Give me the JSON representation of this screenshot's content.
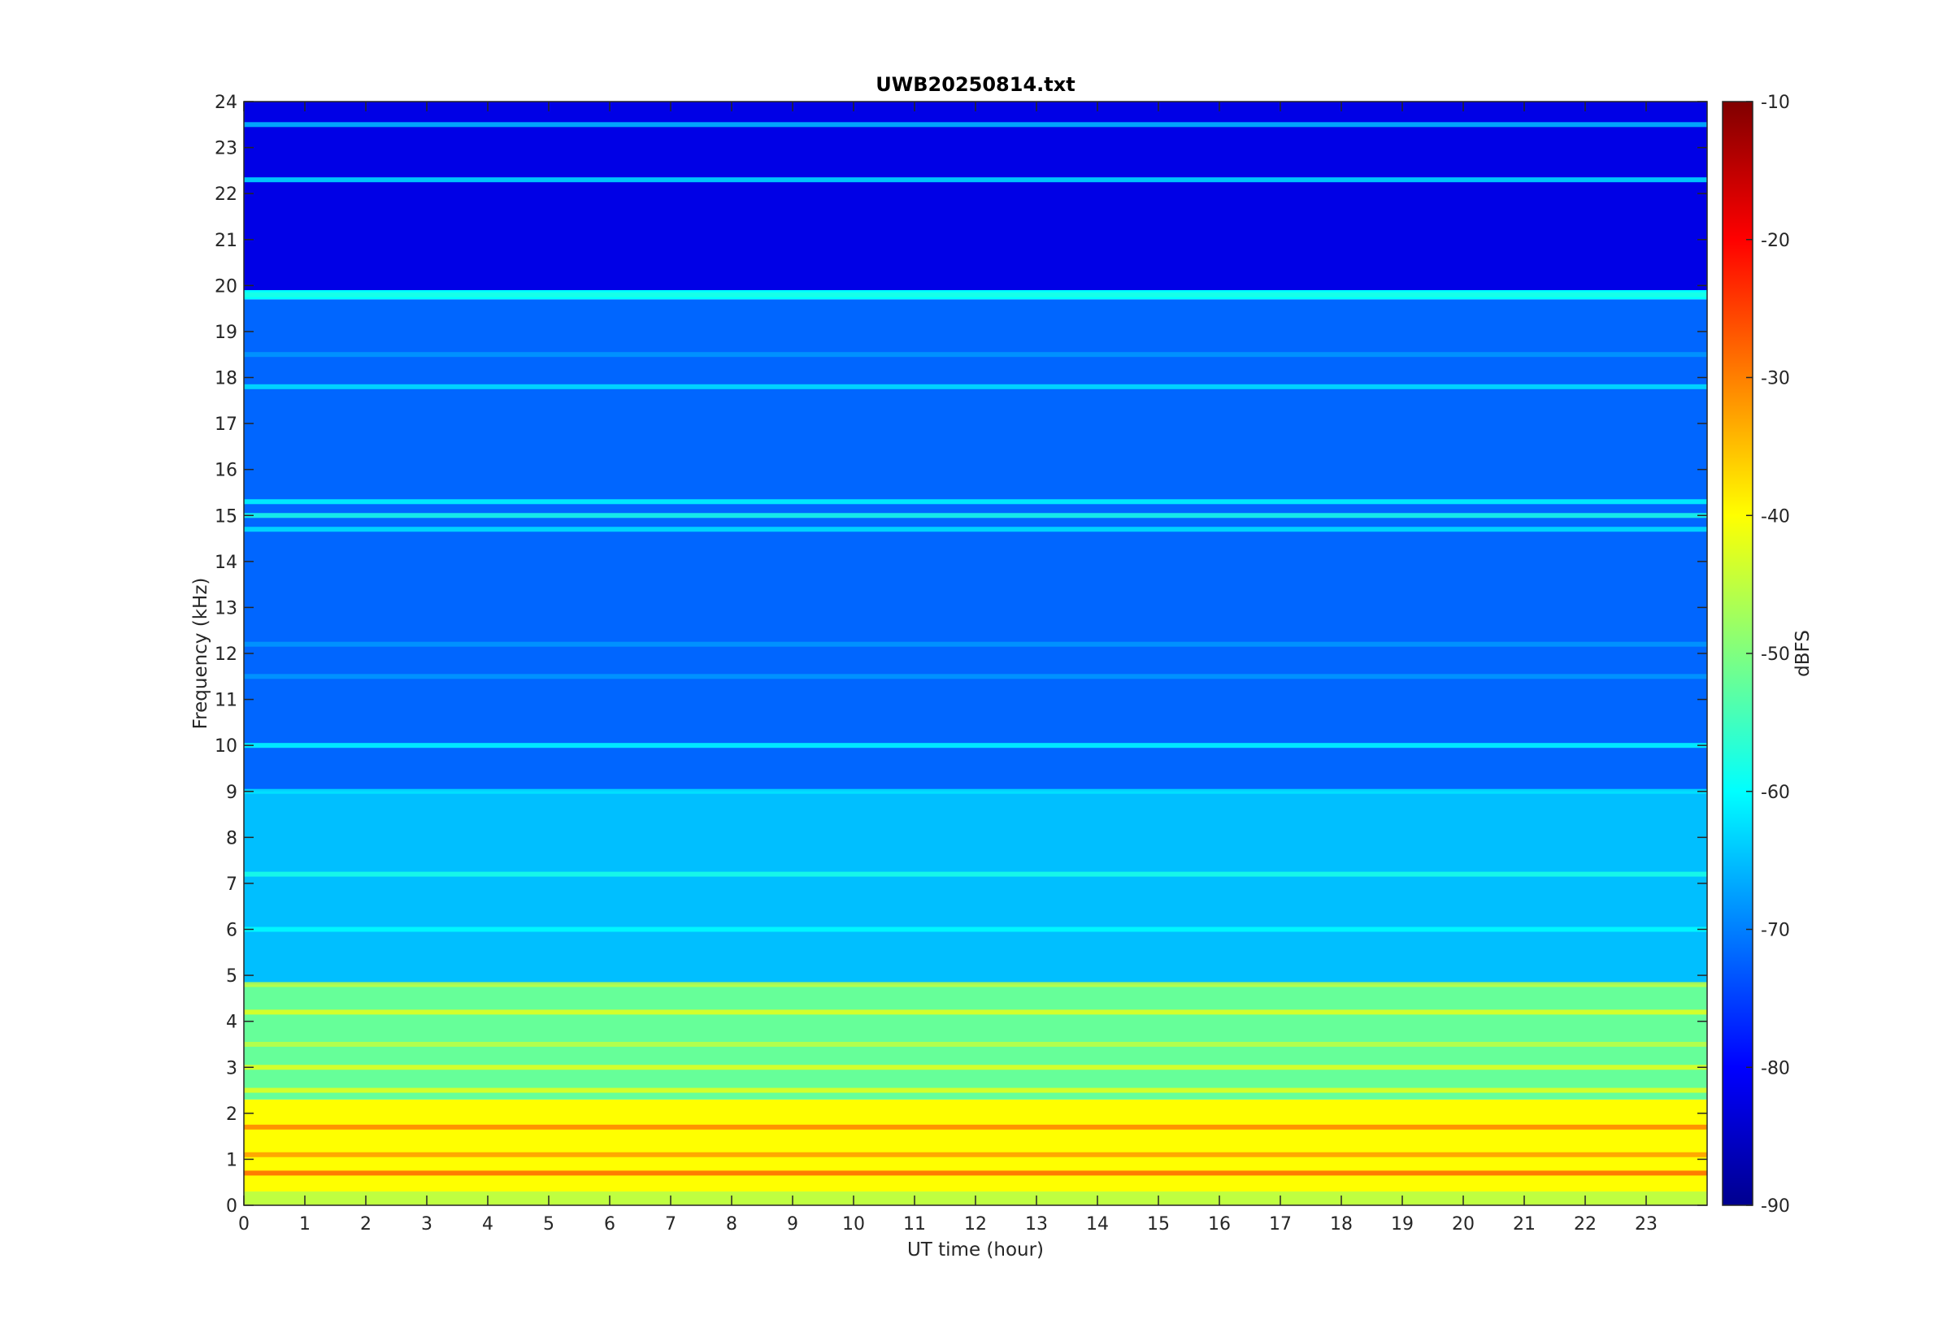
{
  "chart_data": {
    "type": "heatmap",
    "title": "UWB20250814.txt",
    "xlabel": "UT time (hour)",
    "ylabel": "Frequency (kHz)",
    "xlim": [
      0,
      24
    ],
    "ylim": [
      0,
      24
    ],
    "x_ticks": [
      "0",
      "1",
      "2",
      "3",
      "4",
      "5",
      "6",
      "7",
      "8",
      "9",
      "10",
      "11",
      "12",
      "13",
      "14",
      "15",
      "16",
      "17",
      "18",
      "19",
      "20",
      "21",
      "22",
      "23"
    ],
    "y_ticks": [
      "0",
      "1",
      "2",
      "3",
      "4",
      "5",
      "6",
      "7",
      "8",
      "9",
      "10",
      "11",
      "12",
      "13",
      "14",
      "15",
      "16",
      "17",
      "18",
      "19",
      "20",
      "21",
      "22",
      "23",
      "24"
    ],
    "colorbar": {
      "label": "dBFS",
      "range": [
        -90,
        -10
      ],
      "ticks": [
        "-10",
        "-20",
        "-30",
        "-40",
        "-50",
        "-60",
        "-70",
        "-80",
        "-90"
      ],
      "colormap": "jet"
    },
    "z_levels_dbfs": [
      {
        "band_khz": [
          0,
          0.3
        ],
        "value": -45
      },
      {
        "band_khz": [
          0.3,
          2.3
        ],
        "value": -40
      },
      {
        "band_khz": [
          2.3,
          4.8
        ],
        "value": -52
      },
      {
        "band_khz": [
          4.8,
          9
        ],
        "value": -65
      },
      {
        "band_khz": [
          9,
          19.7
        ],
        "value": -72
      },
      {
        "band_khz": [
          19.7,
          19.9
        ],
        "value": -60
      },
      {
        "band_khz": [
          19.9,
          24
        ],
        "value": -82
      }
    ],
    "line_features_khz": [
      {
        "freq": 0.7,
        "value": -28
      },
      {
        "freq": 1.1,
        "value": -32
      },
      {
        "freq": 1.7,
        "value": -30
      },
      {
        "freq": 2.5,
        "value": -42
      },
      {
        "freq": 3.0,
        "value": -42
      },
      {
        "freq": 3.5,
        "value": -45
      },
      {
        "freq": 4.2,
        "value": -42
      },
      {
        "freq": 4.8,
        "value": -45
      },
      {
        "freq": 6.0,
        "value": -60
      },
      {
        "freq": 7.2,
        "value": -58
      },
      {
        "freq": 9.0,
        "value": -62
      },
      {
        "freq": 10.0,
        "value": -60
      },
      {
        "freq": 11.5,
        "value": -68
      },
      {
        "freq": 12.2,
        "value": -68
      },
      {
        "freq": 14.7,
        "value": -62
      },
      {
        "freq": 15.0,
        "value": -58
      },
      {
        "freq": 15.3,
        "value": -60
      },
      {
        "freq": 17.8,
        "value": -62
      },
      {
        "freq": 18.5,
        "value": -68
      },
      {
        "freq": 19.8,
        "value": -58
      },
      {
        "freq": 22.3,
        "value": -62
      },
      {
        "freq": 23.5,
        "value": -65
      }
    ],
    "colors": {
      "axis": "#262626",
      "background": "#ffffff"
    }
  }
}
